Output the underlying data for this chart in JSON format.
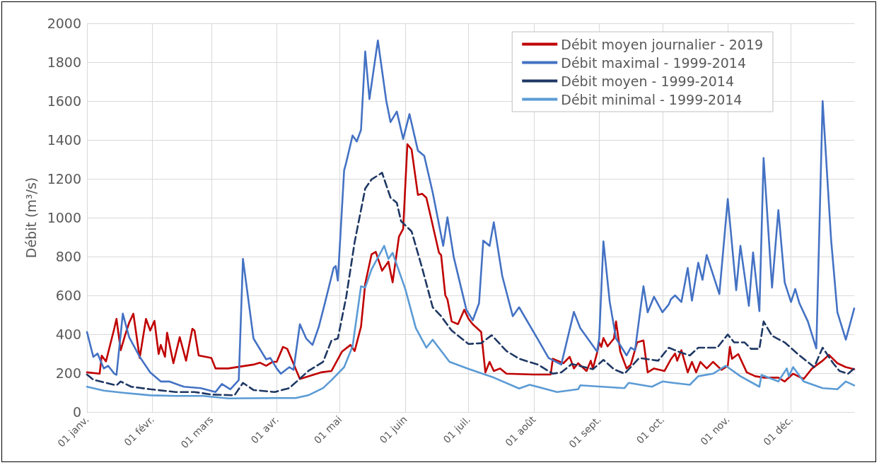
{
  "chart_data": {
    "type": "line",
    "ylabel": "Débit (m³/s)",
    "xlim": [
      "--01-01",
      "--12-31"
    ],
    "xticks": [
      {
        "value": "--01-01",
        "label": "01 janv."
      },
      {
        "value": "--02-01",
        "label": "01 févr."
      },
      {
        "value": "--03-01",
        "label": "01 mars"
      },
      {
        "value": "--04-01",
        "label": "01 avr."
      },
      {
        "value": "--05-01",
        "label": "01 mai"
      },
      {
        "value": "--06-01",
        "label": "01 juin"
      },
      {
        "value": "--07-01",
        "label": "01 juil."
      },
      {
        "value": "--08-01",
        "label": "01 août"
      },
      {
        "value": "--09-01",
        "label": "01 sept."
      },
      {
        "value": "--10-01",
        "label": "01 oct."
      },
      {
        "value": "--11-01",
        "label": "01 nov."
      },
      {
        "value": "--12-01",
        "label": "01 déc."
      }
    ],
    "ylim": [
      0,
      2000
    ],
    "yticks": [
      0,
      200,
      400,
      600,
      800,
      1000,
      1200,
      1400,
      1600,
      1800,
      2000
    ],
    "grid": true,
    "legend": "top right",
    "marker": "none",
    "series": [
      {
        "name": "Débit moyen journalier - 2019",
        "color": "#c00000",
        "line_style": "solid",
        "x": [
          "--01-01",
          "--01-07",
          "--01-08",
          "--01-10",
          "--01-14",
          "--01-15",
          "--01-17",
          "--01-19",
          "--01-21",
          "--01-23",
          "--01-26",
          "--01-29",
          "--01-31",
          "--02-02",
          "--02-04",
          "--02-05",
          "--02-07",
          "--02-08",
          "--02-11",
          "--02-14",
          "--02-17",
          "--02-20",
          "--02-21",
          "--02-23",
          "--03-01",
          "--03-03",
          "--03-09",
          "--03-21",
          "--03-24",
          "--03-27",
          "--03-30",
          "--04-01",
          "--04-04",
          "--04-06",
          "--04-12",
          "--04-22",
          "--04-27",
          "--05-02",
          "--05-06",
          "--05-08",
          "--05-11",
          "--05-13",
          "--05-16",
          "--05-18",
          "--05-21",
          "--05-24",
          "--05-26",
          "--05-29",
          "--05-31",
          "--06-02",
          "--06-04",
          "--06-07",
          "--06-09",
          "--06-11",
          "--06-13",
          "--06-17",
          "--06-18",
          "--06-20",
          "--06-21",
          "--06-23",
          "--06-26",
          "--06-29",
          "--07-01",
          "--07-03",
          "--07-07",
          "--07-09",
          "--07-11",
          "--07-13",
          "--07-16",
          "--07-19",
          "--08-01",
          "--08-09",
          "--08-10",
          "--08-15",
          "--08-18",
          "--08-20",
          "--08-22",
          "--08-26",
          "--08-28",
          "--08-29",
          "--08-31",
          "--09-01",
          "--09-02",
          "--09-03",
          "--09-05",
          "--09-08",
          "--09-09",
          "--09-11",
          "--09-14",
          "--09-16",
          "--09-19",
          "--09-22",
          "--09-24",
          "--09-27",
          "--10-02",
          "--10-05",
          "--10-07",
          "--10-08",
          "--10-10",
          "--10-13",
          "--10-15",
          "--10-17",
          "--10-19",
          "--10-22",
          "--10-25",
          "--10-29",
          "--11-01",
          "--11-02",
          "--11-03",
          "--11-06",
          "--11-10",
          "--11-14",
          "--11-18",
          "--11-25",
          "--11-28",
          "--12-02",
          "--12-07",
          "--12-11",
          "--12-16",
          "--12-19",
          "--12-23",
          "--12-27",
          "--12-31"
        ],
        "values": [
          204,
          197,
          290,
          260,
          432,
          479,
          318,
          392,
          459,
          506,
          278,
          479,
          419,
          469,
          298,
          345,
          284,
          408,
          251,
          385,
          264,
          428,
          419,
          291,
          278,
          224,
          224,
          244,
          254,
          238,
          258,
          258,
          335,
          325,
          170,
          204,
          211,
          311,
          345,
          314,
          439,
          660,
          811,
          824,
          727,
          774,
          667,
          902,
          942,
          1378,
          1351,
          1117,
          1123,
          1103,
          1009,
          819,
          808,
          600,
          580,
          466,
          452,
          526,
          480,
          452,
          412,
          204,
          258,
          211,
          224,
          197,
          193,
          193,
          274,
          251,
          284,
          224,
          251,
          211,
          264,
          224,
          305,
          358,
          335,
          381,
          338,
          378,
          466,
          311,
          224,
          244,
          358,
          368,
          204,
          224,
          211,
          271,
          301,
          264,
          318,
          204,
          258,
          204,
          258,
          224,
          258,
          217,
          238,
          335,
          274,
          298,
          204,
          184,
          177,
          177,
          157,
          197,
          170,
          224,
          264,
          294,
          251,
          231,
          220
        ]
      },
      {
        "name": "Débit maximal - 1999-2014",
        "color": "#4472c4",
        "line_style": "solid",
        "x": [
          "--01-01",
          "--01-04",
          "--01-06",
          "--01-09",
          "--01-11",
          "--01-14",
          "--01-15",
          "--01-18",
          "--01-21",
          "--01-26",
          "--01-31",
          "--02-05",
          "--02-09",
          "--02-16",
          "--02-24",
          "--03-03",
          "--03-06",
          "--03-10",
          "--03-14",
          "--03-16",
          "--03-21",
          "--03-27",
          "--03-29",
          "--04-01",
          "--04-03",
          "--04-07",
          "--04-09",
          "--04-12",
          "--04-15",
          "--04-18",
          "--04-21",
          "--04-24",
          "--04-28",
          "--04-29",
          "--04-30",
          "--05-03",
          "--05-04",
          "--05-07",
          "--05-09",
          "--05-11",
          "--05-13",
          "--05-15",
          "--05-19",
          "--05-23",
          "--05-25",
          "--05-28",
          "--05-31",
          "--06-03",
          "--06-07",
          "--06-10",
          "--06-14",
          "--06-19",
          "--06-21",
          "--06-24",
          "--06-30",
          "--07-03",
          "--07-06",
          "--07-08",
          "--07-11",
          "--07-13",
          "--07-17",
          "--07-22",
          "--07-25",
          "--08-03",
          "--08-08",
          "--08-14",
          "--08-20",
          "--08-23",
          "--08-31",
          "--09-01",
          "--09-03",
          "--09-06",
          "--09-09",
          "--09-14",
          "--09-16",
          "--09-18",
          "--09-22",
          "--09-24",
          "--09-27",
          "--10-01",
          "--10-04",
          "--10-05",
          "--10-07",
          "--10-10",
          "--10-13",
          "--10-15",
          "--10-18",
          "--10-20",
          "--10-22",
          "--10-28",
          "--11-01",
          "--11-05",
          "--11-07",
          "--11-11",
          "--11-13",
          "--11-16",
          "--11-18",
          "--11-22",
          "--11-25",
          "--11-28",
          "--12-01",
          "--12-03",
          "--12-05",
          "--12-09",
          "--12-13",
          "--12-16",
          "--12-20",
          "--12-23",
          "--12-27",
          "--12-29",
          "--12-31"
        ],
        "values": [
          412,
          284,
          301,
          224,
          238,
          197,
          191,
          506,
          385,
          284,
          204,
          157,
          157,
          130,
          123,
          103,
          144,
          117,
          164,
          788,
          378,
          271,
          278,
          224,
          197,
          231,
          217,
          452,
          378,
          345,
          439,
          566,
          741,
          751,
          676,
          1244,
          1284,
          1423,
          1392,
          1452,
          1855,
          1610,
          1912,
          1600,
          1492,
          1546,
          1405,
          1533,
          1345,
          1318,
          1130,
          855,
          1002,
          797,
          526,
          472,
          560,
          882,
          855,
          976,
          700,
          493,
          539,
          372,
          278,
          244,
          515,
          432,
          311,
          378,
          878,
          566,
          378,
          291,
          331,
          318,
          647,
          513,
          593,
          513,
          553,
          580,
          600,
          566,
          741,
          573,
          768,
          680,
          808,
          607,
          1096,
          627,
          855,
          546,
          821,
          519,
          1307,
          640,
          1039,
          667,
          566,
          633,
          559,
          466,
          327,
          1600,
          889,
          513,
          372,
          452,
          533
        ]
      },
      {
        "name": "Débit moyen - 1999-2014",
        "color": "#1f3864",
        "line_style": "dashed",
        "x": [
          "--01-01",
          "--01-04",
          "--01-10",
          "--01-15",
          "--01-17",
          "--01-22",
          "--01-31",
          "--02-12",
          "--02-21",
          "--03-01",
          "--03-12",
          "--03-16",
          "--03-21",
          "--03-31",
          "--04-07",
          "--04-16",
          "--04-23",
          "--04-27",
          "--04-30",
          "--05-04",
          "--05-08",
          "--05-13",
          "--05-16",
          "--05-21",
          "--05-25",
          "--05-28",
          "--05-30",
          "--06-04",
          "--06-09",
          "--06-14",
          "--06-18",
          "--06-23",
          "--07-01",
          "--07-07",
          "--07-12",
          "--07-19",
          "--07-25",
          "--08-03",
          "--08-10",
          "--08-14",
          "--08-19",
          "--08-29",
          "--09-03",
          "--09-08",
          "--09-13",
          "--09-20",
          "--09-29",
          "--10-04",
          "--10-09",
          "--10-14",
          "--10-18",
          "--10-27",
          "--11-01",
          "--11-04",
          "--11-09",
          "--11-12",
          "--11-16",
          "--11-18",
          "--11-22",
          "--11-28",
          "--12-05",
          "--12-12",
          "--12-16",
          "--12-21",
          "--12-24",
          "--12-28",
          "--12-31"
        ],
        "values": [
          193,
          166,
          150,
          137,
          157,
          130,
          117,
          103,
          103,
          90,
          86,
          150,
          113,
          103,
          123,
          211,
          258,
          368,
          378,
          593,
          875,
          1150,
          1197,
          1231,
          1103,
          1076,
          982,
          929,
          741,
          539,
          493,
          419,
          350,
          354,
          395,
          314,
          274,
          244,
          197,
          204,
          247,
          220,
          268,
          220,
          197,
          278,
          264,
          331,
          309,
          291,
          331,
          331,
          399,
          358,
          358,
          325,
          325,
          466,
          392,
          358,
          291,
          231,
          331,
          251,
          211,
          197,
          224
        ]
      },
      {
        "name": "Débit minimal - 1999-2014",
        "color": "#5b9bd5",
        "line_style": "solid",
        "x": [
          "--01-01",
          "--01-09",
          "--01-18",
          "--01-31",
          "--02-12",
          "--02-25",
          "--03-09",
          "--03-31",
          "--04-10",
          "--04-16",
          "--04-23",
          "--04-27",
          "--05-03",
          "--05-07",
          "--05-11",
          "--05-13",
          "--05-16",
          "--05-19",
          "--05-22",
          "--05-24",
          "--05-26",
          "--06-01",
          "--06-06",
          "--06-11",
          "--06-14",
          "--06-22",
          "--07-01",
          "--07-13",
          "--07-25",
          "--07-30",
          "--08-12",
          "--08-22",
          "--08-23",
          "--09-13",
          "--09-15",
          "--09-26",
          "--10-01",
          "--10-06",
          "--10-14",
          "--10-18",
          "--10-25",
          "--10-31",
          "--11-07",
          "--11-16",
          "--11-17",
          "--11-25",
          "--11-29",
          "--11-30",
          "--12-02",
          "--12-07",
          "--12-16",
          "--12-23",
          "--12-27",
          "--12-31"
        ],
        "values": [
          130,
          110,
          99,
          86,
          83,
          83,
          70,
          72,
          72,
          86,
          123,
          164,
          231,
          338,
          647,
          640,
          734,
          794,
          855,
          788,
          819,
          633,
          432,
          331,
          372,
          258,
          222,
          177,
          121,
          140,
          103,
          117,
          137,
          123,
          150,
          130,
          157,
          150,
          140,
          184,
          197,
          238,
          184,
          130,
          191,
          157,
          224,
          184,
          231,
          157,
          123,
          117,
          157,
          137
        ]
      }
    ]
  }
}
